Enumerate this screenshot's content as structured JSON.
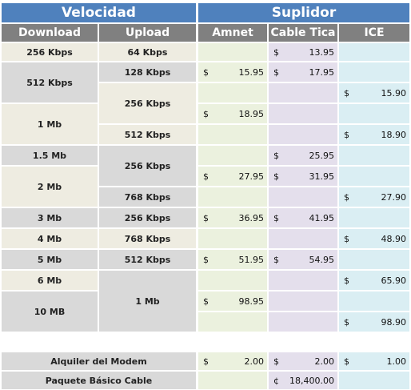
{
  "headers": {
    "velocidad": "Velocidad",
    "suplidor": "Suplidor",
    "download": "Download",
    "upload": "Upload",
    "amnet": "Amnet",
    "cable_tica": "Cable Tica",
    "ice": "ICE"
  },
  "download": [
    "256 Kbps",
    "512 Kbps",
    "1 Mb",
    "1.5 Mb",
    "2 Mb",
    "3 Mb",
    "4 Mb",
    "5 Mb",
    "6 Mb",
    "10 MB"
  ],
  "upload": [
    "64 Kbps",
    "128 Kbps",
    "256 Kbps",
    "512 Kbps",
    "256 Kbps",
    "768 Kbps",
    "256 Kbps",
    "768 Kbps",
    "512 Kbps",
    "1 Mb"
  ],
  "currency": "$",
  "currency_colon": "¢",
  "prices": {
    "amnet": [
      "15.95",
      "18.95",
      "27.95",
      "36.95",
      "51.95",
      "98.95"
    ],
    "cable_tica": [
      "13.95",
      "17.95",
      "25.95",
      "31.95",
      "41.95",
      "54.95"
    ],
    "ice": [
      "15.90",
      "18.90",
      "27.90",
      "48.90",
      "65.90",
      "98.90"
    ]
  },
  "extras": {
    "modem_label": "Alquiler del Modem",
    "modem_amnet": "2.00",
    "modem_cable": "2.00",
    "modem_ice": "1.00",
    "cable_label": "Paquete Básico Cable",
    "cable_price": "18,400.00"
  }
}
